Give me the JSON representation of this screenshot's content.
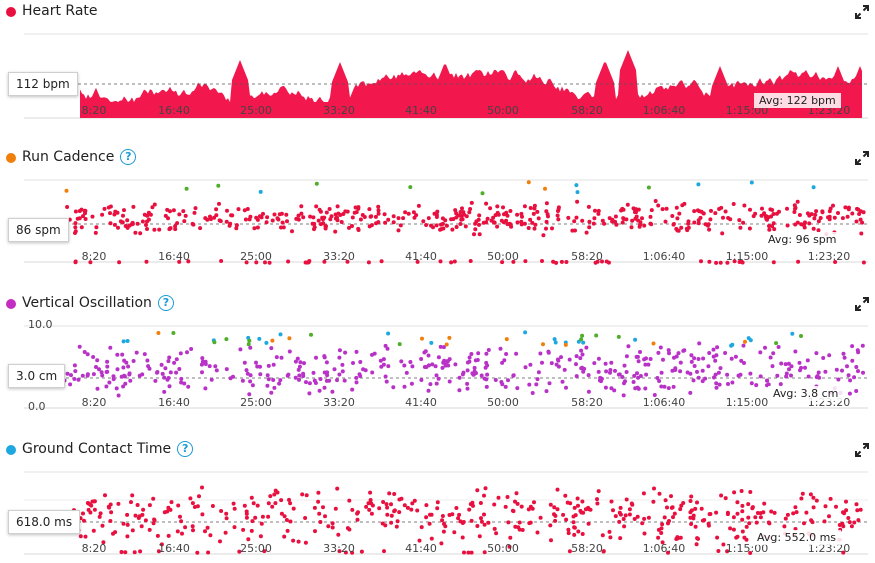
{
  "x_ticks": [
    "8:20",
    "16:40",
    "25:00",
    "33:20",
    "41:40",
    "50:00",
    "58:20",
    "1:06:40",
    "1:15:00",
    "1:23:20"
  ],
  "panels": [
    {
      "title": "Heart Rate",
      "dot_color": "#e8103f",
      "has_help": false,
      "current_label": "112 bpm",
      "avg_label": "Avg: 122 bpm",
      "series_color": "#f2174c"
    },
    {
      "title": "Run Cadence",
      "dot_color": "#f07f0c",
      "has_help": true,
      "current_label": "86 spm",
      "avg_label": "Avg: 96 spm",
      "series_color": "#e8103f"
    },
    {
      "title": "Vertical Oscillation",
      "dot_color": "#c22ec2",
      "has_help": true,
      "current_label": "3.0 cm",
      "avg_label": "Avg: 3.8 cm",
      "y_top_label": "10.0",
      "y_bottom_label": "0.0",
      "series_color": "#b932c7"
    },
    {
      "title": "Ground Contact Time",
      "dot_color": "#1fa8e0",
      "has_help": true,
      "current_label": "618.0 ms",
      "avg_label": "Avg: 552.0 ms",
      "series_color": "#e8103f"
    }
  ],
  "colors": {
    "zone_orange": "#f07f0c",
    "zone_green": "#4fae2a",
    "zone_blue": "#1fa8e0",
    "zone_purple": "#8a3fd1",
    "grid": "#e2e2e2"
  },
  "icons": {
    "expand": "expand-arrows-icon",
    "help": "question-circle-icon"
  }
}
